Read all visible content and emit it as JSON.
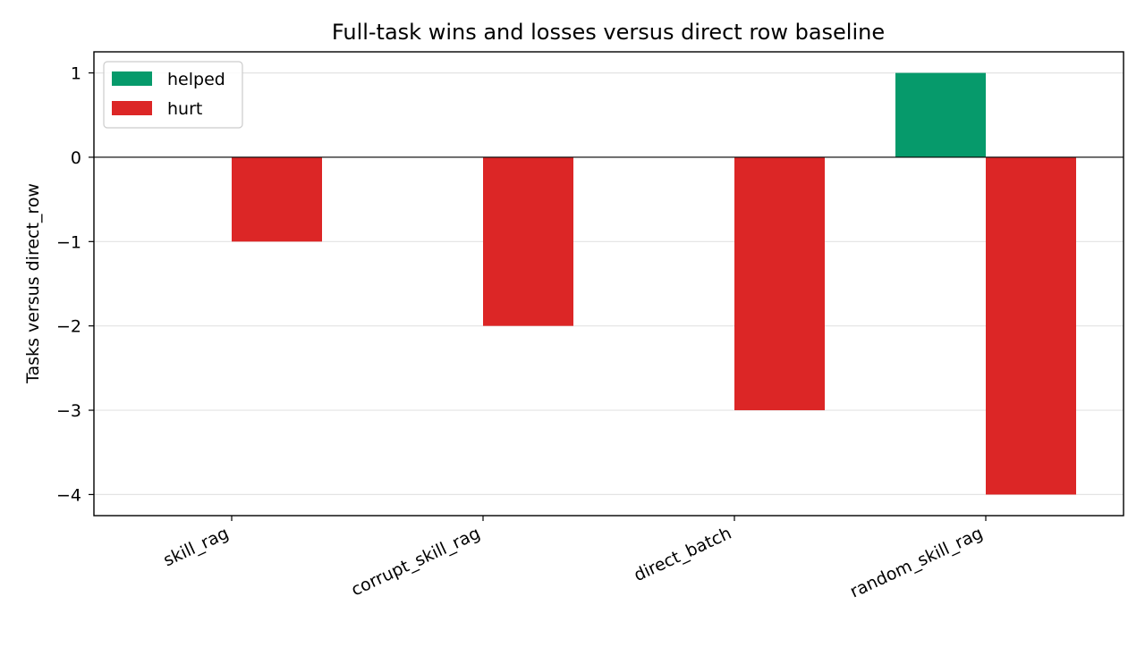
{
  "chart_data": {
    "type": "bar",
    "title": "Full-task wins and losses versus direct row baseline",
    "xlabel": "",
    "ylabel": "Tasks versus direct_row",
    "categories": [
      "skill_rag",
      "corrupt_skill_rag",
      "direct_batch",
      "random_skill_rag"
    ],
    "series": [
      {
        "name": "helped",
        "color": "#069a6b",
        "values": [
          0,
          0,
          0,
          1
        ]
      },
      {
        "name": "hurt",
        "color": "#dc2626",
        "values": [
          -1,
          -2,
          -3,
          -4
        ]
      }
    ],
    "ylim": [
      -4.25,
      1.25
    ],
    "yticks": [
      1,
      0,
      -1,
      -2,
      -3,
      -4
    ],
    "ytick_labels": [
      "1",
      "0",
      "−1",
      "−2",
      "−3",
      "−4"
    ],
    "grid": "horizontal",
    "legend_position": "top-left"
  }
}
